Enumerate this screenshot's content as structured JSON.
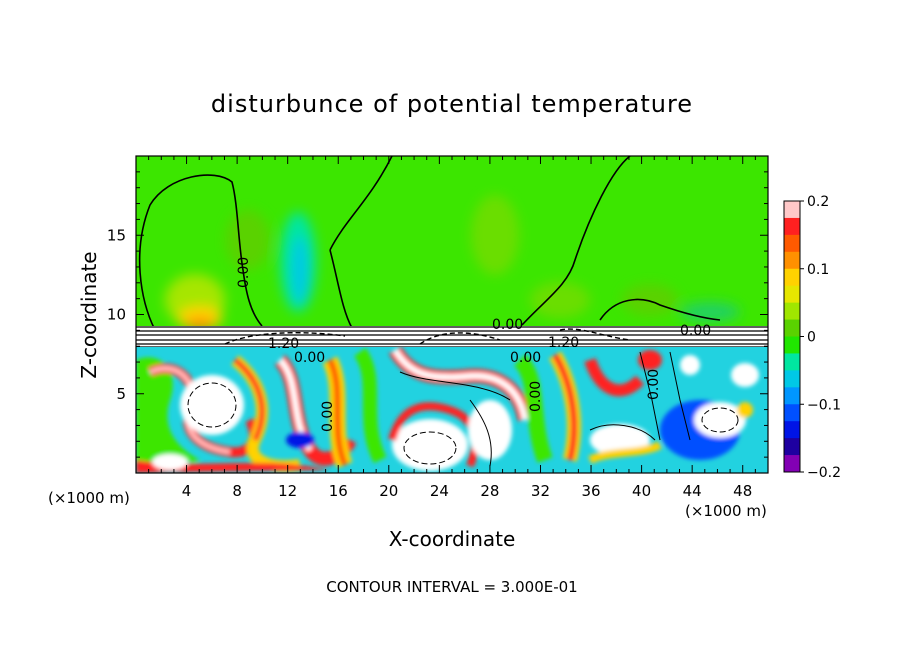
{
  "chart_data": {
    "type": "heatmap",
    "title": "disturbunce of potential temperature",
    "xlabel": "X-coordinate",
    "ylabel": "Z-coordinate",
    "x_unit": "(×1000 m)",
    "y_unit": "(×1000 m)",
    "x_ticks": [
      "4",
      "8",
      "12",
      "16",
      "20",
      "24",
      "28",
      "32",
      "36",
      "40",
      "44",
      "48"
    ],
    "y_ticks": [
      "5",
      "10",
      "15"
    ],
    "xlim": [
      0,
      50
    ],
    "ylim": [
      0,
      20
    ],
    "colorbar": {
      "ticks": [
        "0.2",
        "0.1",
        "0",
        "−0.1",
        "−0.2"
      ],
      "range": [
        -0.2,
        0.2
      ],
      "colors": [
        "#ffc8c8",
        "#ff2020",
        "#ff5a00",
        "#ff9000",
        "#ffd200",
        "#e6e600",
        "#a0e600",
        "#5ad200",
        "#20e600",
        "#00e6a0",
        "#00c8e6",
        "#0096ff",
        "#0050ff",
        "#0014e6",
        "#1e00a0",
        "#8200b4"
      ]
    },
    "contour_labels": [
      "0.00",
      "0.00",
      "0.00",
      "0.00",
      "0.00",
      "0.00",
      "0.00",
      "0.00",
      "1.20",
      "1.20",
      "0.00",
      "0.00",
      "0.00"
    ],
    "caption": "CONTOUR INTERVAL = 3.000E-01"
  }
}
